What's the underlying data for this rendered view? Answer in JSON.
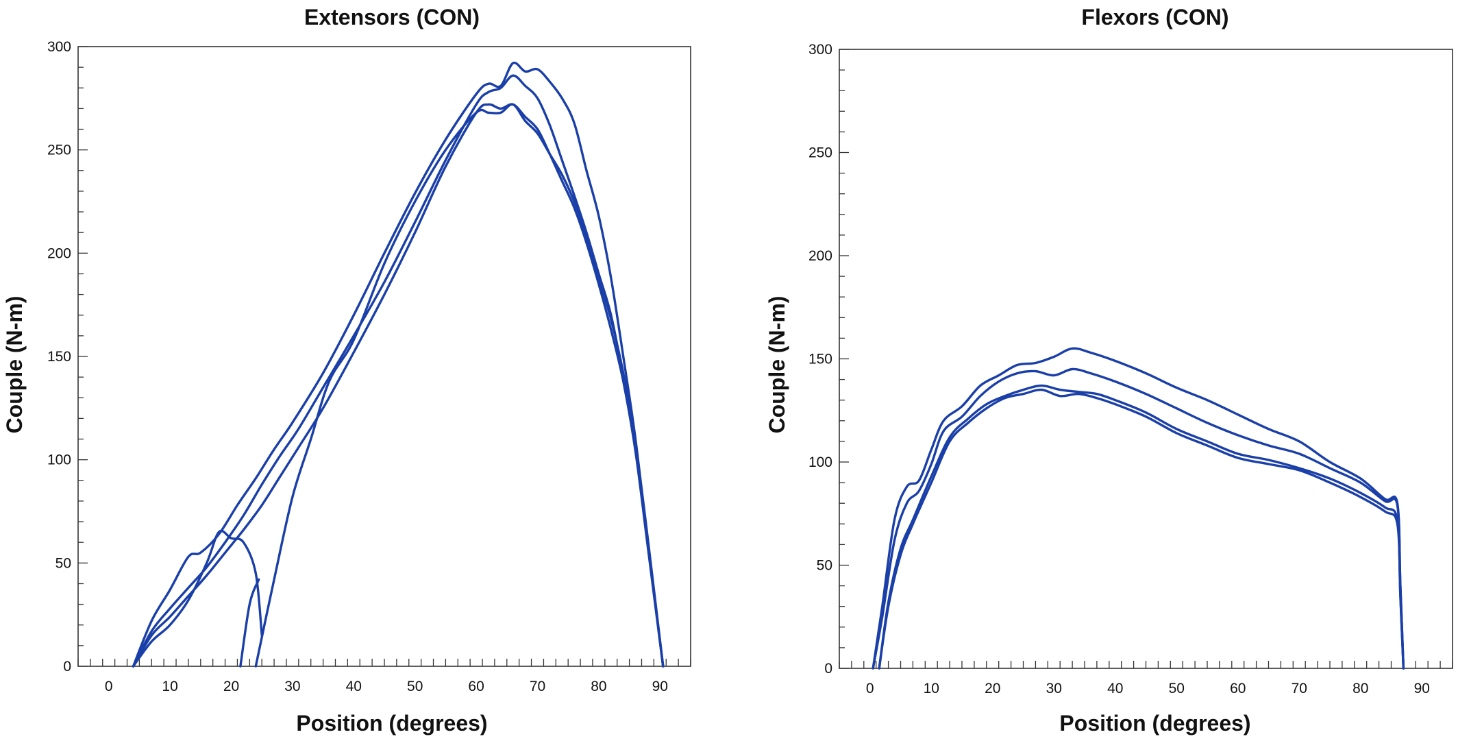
{
  "chart_data": [
    {
      "type": "line",
      "title": "Extensors (CON)",
      "xlabel": "Position (degrees)",
      "ylabel": "Couple (N-m)",
      "xlim": [
        -5,
        95
      ],
      "ylim": [
        0,
        300
      ],
      "xticks": [
        0,
        10,
        20,
        30,
        40,
        50,
        60,
        70,
        80,
        90
      ],
      "yticks": [
        0,
        50,
        100,
        150,
        200,
        250,
        300
      ],
      "grid": false,
      "line_color": "#1a3fa8",
      "series": [
        {
          "x": [
            4,
            7,
            10,
            13,
            15,
            18,
            21,
            24,
            27,
            30,
            35,
            40,
            45,
            50,
            55,
            60,
            62,
            64,
            66,
            68,
            70,
            72,
            74,
            76,
            78,
            80,
            82,
            84,
            86,
            88,
            90.5
          ],
          "values": [
            0,
            22,
            37,
            53,
            55,
            64,
            78,
            91,
            105,
            118,
            142,
            170,
            200,
            229,
            255,
            277,
            282,
            281,
            292,
            288,
            289,
            283,
            275,
            263,
            240,
            218,
            188,
            150,
            110,
            60,
            0
          ]
        },
        {
          "x": [
            4,
            7,
            10,
            13,
            16,
            19,
            22,
            25,
            28,
            31,
            35,
            40,
            45,
            50,
            55,
            60,
            62,
            64,
            66,
            68,
            70,
            72,
            74,
            76,
            78,
            80,
            82,
            84,
            86,
            88,
            90.5
          ],
          "values": [
            0,
            17,
            28,
            38,
            48,
            60,
            73,
            88,
            102,
            115,
            135,
            160,
            186,
            215,
            245,
            272,
            278,
            280,
            286,
            281,
            275,
            262,
            245,
            228,
            210,
            190,
            170,
            140,
            105,
            60,
            0
          ]
        },
        {
          "x": [
            4,
            7,
            10,
            13,
            16,
            19,
            22,
            25,
            28,
            31,
            35,
            40,
            45,
            50,
            55,
            60,
            62,
            64,
            66,
            68,
            70,
            72,
            74,
            76,
            78,
            80,
            82,
            84,
            86,
            88,
            90.5
          ],
          "values": [
            0,
            15,
            24,
            34,
            44,
            55,
            66,
            78,
            92,
            106,
            125,
            152,
            180,
            210,
            242,
            268,
            272,
            270,
            272,
            266,
            260,
            248,
            235,
            222,
            205,
            185,
            163,
            138,
            104,
            58,
            0
          ]
        },
        {
          "x": [
            24,
            27,
            30,
            33,
            36,
            40,
            45,
            50,
            55,
            60,
            62,
            64,
            66,
            68,
            70,
            72,
            74,
            76,
            78,
            80,
            82,
            84,
            86,
            88,
            90.5
          ],
          "values": [
            0,
            42,
            82,
            110,
            138,
            158,
            195,
            225,
            250,
            268,
            268,
            268,
            272,
            264,
            258,
            248,
            238,
            225,
            208,
            188,
            168,
            142,
            108,
            62,
            0
          ]
        },
        {
          "x": [
            4,
            7,
            10,
            13,
            16,
            18,
            20,
            22,
            24,
            25
          ],
          "values": [
            0,
            12,
            20,
            32,
            50,
            65,
            62,
            60,
            45,
            15
          ]
        },
        {
          "x": [
            21.5,
            23,
            24.5
          ],
          "values": [
            0,
            30,
            42
          ]
        }
      ]
    },
    {
      "type": "line",
      "title": "Flexors (CON)",
      "xlabel": "Position (degrees)",
      "ylabel": "Couple (N-m)",
      "xlim": [
        -5,
        95
      ],
      "ylim": [
        0,
        300
      ],
      "xticks": [
        0,
        10,
        20,
        30,
        40,
        50,
        60,
        70,
        80,
        90
      ],
      "yticks": [
        0,
        50,
        100,
        150,
        200,
        250,
        300
      ],
      "grid": false,
      "line_color": "#1a3fa8",
      "series": [
        {
          "x": [
            0.5,
            2,
            4,
            6,
            8,
            10,
            12,
            15,
            18,
            21,
            24,
            27,
            30,
            33,
            36,
            40,
            45,
            50,
            55,
            60,
            65,
            70,
            75,
            80,
            84,
            86,
            86.5,
            87
          ],
          "values": [
            0,
            30,
            72,
            88,
            91,
            106,
            120,
            127,
            137,
            142,
            147,
            148,
            151,
            155,
            153,
            149,
            143,
            136,
            130,
            123,
            116,
            110,
            100,
            92,
            82,
            80,
            40,
            0
          ]
        },
        {
          "x": [
            0.5,
            2,
            4,
            6,
            8,
            10,
            12,
            15,
            18,
            21,
            24,
            27,
            30,
            33,
            36,
            40,
            45,
            50,
            55,
            60,
            65,
            70,
            75,
            80,
            84,
            86,
            86.5,
            87
          ],
          "values": [
            0,
            25,
            62,
            80,
            86,
            99,
            115,
            122,
            132,
            139,
            143,
            144,
            142,
            145,
            143,
            139,
            133,
            126,
            119,
            113,
            108,
            104,
            97,
            90,
            81,
            79,
            40,
            0
          ]
        },
        {
          "x": [
            1.5,
            3,
            5,
            7,
            10,
            13,
            16,
            19,
            22,
            25,
            28,
            31,
            34,
            37,
            40,
            45,
            50,
            55,
            60,
            65,
            70,
            75,
            80,
            84,
            86,
            86.5,
            87
          ],
          "values": [
            0,
            32,
            58,
            72,
            93,
            112,
            121,
            128,
            132,
            135,
            137,
            135,
            134,
            133,
            130,
            124,
            116,
            110,
            104,
            101,
            97,
            92,
            85,
            78,
            72,
            35,
            0
          ]
        },
        {
          "x": [
            1.5,
            3,
            5,
            7,
            10,
            13,
            16,
            19,
            22,
            25,
            28,
            31,
            34,
            37,
            40,
            45,
            50,
            55,
            60,
            65,
            70,
            75,
            80,
            84,
            86,
            86.5,
            87
          ],
          "values": [
            0,
            30,
            55,
            70,
            90,
            110,
            119,
            126,
            131,
            133,
            135,
            132,
            133,
            131,
            128,
            122,
            114,
            108,
            102,
            99,
            96,
            90,
            83,
            76,
            70,
            35,
            0
          ]
        }
      ]
    }
  ]
}
